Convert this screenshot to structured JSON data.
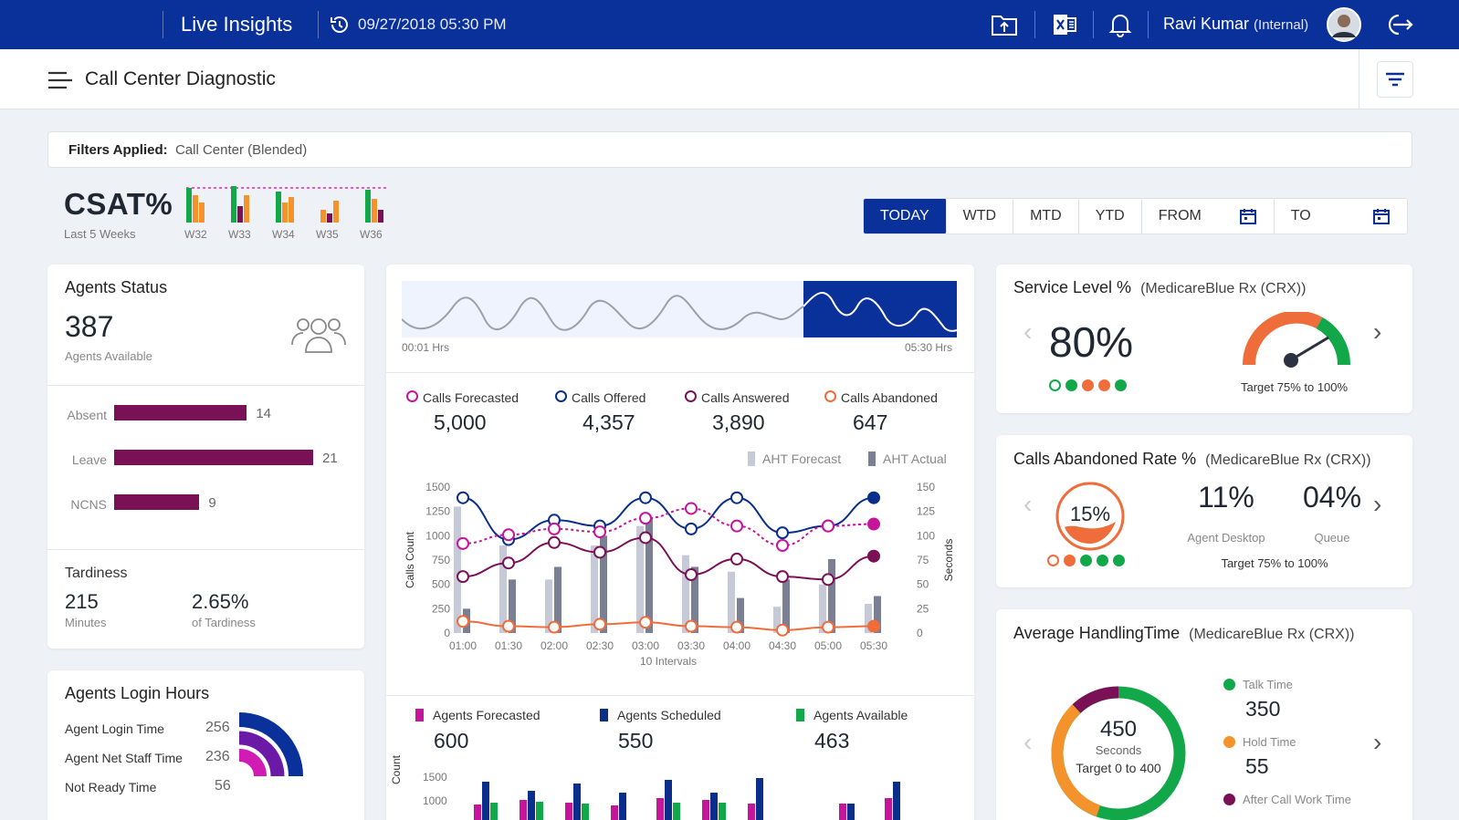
{
  "header": {
    "app_title": "Live Insights",
    "timestamp": "09/27/2018  05:30 PM",
    "user_name": "Ravi Kumar",
    "user_role": "(Internal)",
    "icons": [
      "upload-folder-icon",
      "excel-icon",
      "bell-icon",
      "avatar",
      "logout-icon"
    ]
  },
  "subheader": {
    "title": "Call Center Diagnostic"
  },
  "filters": {
    "label": "Filters Applied:",
    "value": "Call Center (Blended)"
  },
  "csat": {
    "title": "CSAT%",
    "subtitle": "Last 5 Weeks",
    "weeks": [
      "W32",
      "W33",
      "W34",
      "W35",
      "W36"
    ]
  },
  "periods": {
    "today": "TODAY",
    "wtd": "WTD",
    "mtd": "MTD",
    "ytd": "YTD",
    "from": "FROM",
    "to": "TO"
  },
  "agents_status": {
    "title": "Agents Status",
    "available_count": "387",
    "available_label": "Agents Available",
    "bars": [
      {
        "label": "Absent",
        "value": 14
      },
      {
        "label": "Leave",
        "value": 21
      },
      {
        "label": "NCNS",
        "value": 9
      }
    ],
    "tardiness_title": "Tardiness",
    "tardiness_minutes": "215",
    "tardiness_minutes_label": "Minutes",
    "tardiness_pct": "2.65%",
    "tardiness_pct_label": "of Tardiness"
  },
  "login_hours": {
    "title": "Agents Login Hours",
    "rows": [
      {
        "label": "Agent Login Time",
        "value": "256"
      },
      {
        "label": "Agent Net Staff Time",
        "value": "236"
      },
      {
        "label": "Not Ready Time",
        "value": "56"
      }
    ]
  },
  "timeline": {
    "start": "00:01 Hrs",
    "end": "05:30 Hrs"
  },
  "calls": {
    "forecasted_label": "Calls Forecasted",
    "forecasted": "5,000",
    "offered_label": "Calls Offered",
    "offered": "4,357",
    "answered_label": "Calls Answered",
    "answered": "3,890",
    "abandoned_label": "Calls Abandoned",
    "abandoned": "647",
    "aht_forecast_label": "AHT Forecast",
    "aht_actual_label": "AHT Actual"
  },
  "agents_summary": {
    "forecasted_label": "Agents Forecasted",
    "forecasted": "600",
    "scheduled_label": "Agents Scheduled",
    "scheduled": "550",
    "available_label": "Agents Available",
    "available": "463"
  },
  "chart_data": [
    {
      "type": "line",
      "xlabel": "10 Intervals",
      "ylabel": "Calls Count",
      "y2label": "Seconds",
      "x": [
        "01:00",
        "01:30",
        "02:00",
        "02:30",
        "03:00",
        "03:30",
        "04:00",
        "04:30",
        "05:00",
        "05:30"
      ],
      "yticks": [
        "1500",
        "1250",
        "1000",
        "750",
        "500",
        "250",
        "0"
      ],
      "y2ticks": [
        "150",
        "125",
        "100",
        "75",
        "50",
        "25",
        "0"
      ],
      "ylim": [
        0,
        1500
      ],
      "y2lim": [
        0,
        150
      ],
      "series": [
        {
          "name": "Calls Offered",
          "color": "#0a2f8a",
          "values": [
            1390,
            960,
            1160,
            1100,
            1390,
            1070,
            1390,
            1030,
            1100,
            1390
          ]
        },
        {
          "name": "Calls Forecasted",
          "color": "#c4159b",
          "values": [
            920,
            1010,
            1070,
            1040,
            1180,
            1280,
            1100,
            900,
            1100,
            1120
          ]
        },
        {
          "name": "Calls Answered",
          "color": "#7a1157",
          "values": [
            580,
            720,
            930,
            830,
            980,
            600,
            760,
            580,
            550,
            790
          ]
        },
        {
          "name": "Calls Abandoned",
          "color": "#ef6d3b",
          "values": [
            120,
            70,
            60,
            90,
            110,
            70,
            60,
            30,
            60,
            70
          ]
        },
        {
          "name": "AHT Forecast",
          "type": "bar",
          "color": "#c6c9d8",
          "values": [
            130,
            90,
            55,
            90,
            110,
            80,
            63,
            27,
            50,
            30
          ]
        },
        {
          "name": "AHT Actual",
          "type": "bar",
          "color": "#7b7f93",
          "values": [
            25,
            55,
            68,
            100,
            118,
            68,
            36,
            55,
            76,
            38
          ]
        }
      ]
    },
    {
      "type": "bar",
      "ylabel": "Count",
      "yticks": [
        "1500",
        "1000"
      ],
      "series": [
        {
          "name": "Agents Forecasted",
          "color": "#c4159b"
        },
        {
          "name": "Agents Scheduled",
          "color": "#0a2f8a"
        },
        {
          "name": "Agents Available",
          "color": "#12a84a"
        }
      ]
    }
  ],
  "service_level": {
    "title": "Service Level %",
    "subtitle": "(MedicareBlue Rx (CRX))",
    "value": "80%",
    "target": "Target 75% to 100%",
    "gauge_fraction": 0.8
  },
  "abandon_rate": {
    "title": "Calls Abandoned Rate %",
    "subtitle": "(MedicareBlue Rx (CRX))",
    "value": "15%",
    "agent_desktop_value": "11%",
    "agent_desktop_label": "Agent Desktop",
    "queue_value": "04%",
    "queue_label": "Queue",
    "target": "Target 75% to 100%"
  },
  "aht": {
    "title": "Average HandlingTime",
    "subtitle": "(MedicareBlue Rx (CRX))",
    "value": "450",
    "unit": "Seconds",
    "target": "Target 0 to 400",
    "talk_label": "Talk Time",
    "talk": "350",
    "hold_label": "Hold Time",
    "hold": "55",
    "acw_label": "After Call Work Time"
  }
}
